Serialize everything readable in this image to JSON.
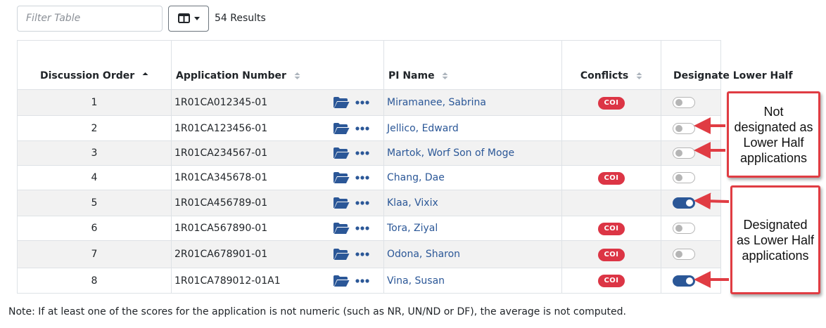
{
  "toolbar": {
    "filter_placeholder": "Filter Table",
    "results_text": "54 Results",
    "columns_icon": "table-columns-icon"
  },
  "table": {
    "headers": {
      "discussion_order": "Discussion Order",
      "application_number": "Application Number",
      "pi_name": "PI Name",
      "conflicts": "Conflicts",
      "designate_lower_half": "Designate Lower Half"
    },
    "sort": {
      "column": "Discussion Order",
      "direction": "ascending"
    },
    "rows": [
      {
        "order": "1",
        "application_number": "1R01CA012345-01",
        "pi_name": "Miramanee, Sabrina",
        "conflict": "COI",
        "lower_half": false
      },
      {
        "order": "2",
        "application_number": "1R01CA123456-01",
        "pi_name": "Jellico, Edward",
        "conflict": "",
        "lower_half": false
      },
      {
        "order": "3",
        "application_number": "1R01CA234567-01",
        "pi_name": "Martok, Worf Son of Moge",
        "conflict": "",
        "lower_half": false
      },
      {
        "order": "4",
        "application_number": "1R01CA345678-01",
        "pi_name": "Chang, Dae",
        "conflict": "COI",
        "lower_half": false
      },
      {
        "order": "5",
        "application_number": "1R01CA456789-01",
        "pi_name": "Klaa, Vixix",
        "conflict": "",
        "lower_half": true
      },
      {
        "order": "6",
        "application_number": "1R01CA567890-01",
        "pi_name": "Tora, Ziyal",
        "conflict": "COI",
        "lower_half": false
      },
      {
        "order": "7",
        "application_number": "2R01CA678901-01",
        "pi_name": "Odona, Sharon",
        "conflict": "COI",
        "lower_half": false
      },
      {
        "order": "8",
        "application_number": "1R01CA789012-01A1",
        "pi_name": "Vina, Susan",
        "conflict": "COI",
        "lower_half": true
      }
    ]
  },
  "callouts": {
    "not_designated": "Not designated as Lower Half applications",
    "designated": "Designated as Lower Half applications"
  },
  "note": "Note: If at least one of the scores for the application is not numeric (such as NR, UN/ND or DF), the average is not computed.",
  "colors": {
    "link": "#2b5797",
    "coi_badge": "#dc3545",
    "toggle_on": "#2b5797",
    "callout_border": "#e03c43",
    "row_stripe": "#f2f2f2"
  }
}
